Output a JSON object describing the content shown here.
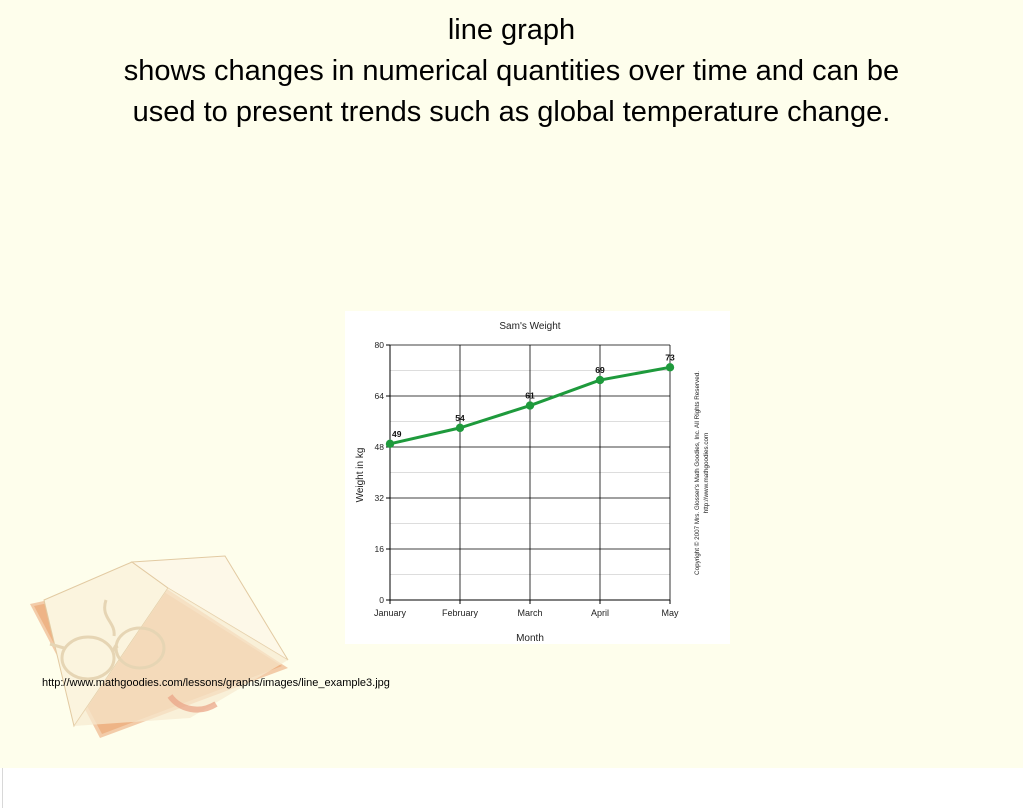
{
  "slide": {
    "heading_line1": "line graph",
    "heading_line2": "shows changes in numerical quantities over time and can be",
    "heading_line3": "used to present trends such as global temperature change.",
    "source_url": "http://www.mathgoodies.com/lessons/graphs/images/line_example3.jpg",
    "colors": {
      "background": "#fefeec",
      "line": "#1e9a3c",
      "book_cover": "#eeb486"
    }
  },
  "chart_data": {
    "type": "line",
    "title": "Sam's Weight",
    "xlabel": "Month",
    "ylabel": "Weight in kg",
    "categories": [
      "January",
      "February",
      "March",
      "April",
      "May"
    ],
    "series": [
      {
        "values": [
          49,
          54,
          61,
          69,
          73
        ]
      }
    ],
    "data_labels": [
      "49",
      "54",
      "61",
      "69",
      "73"
    ],
    "yticks": [
      "0",
      "16",
      "32",
      "48",
      "64",
      "80"
    ],
    "ytick_values": [
      0,
      16,
      32,
      48,
      64,
      80
    ],
    "ylim": [
      0,
      80
    ],
    "grid": true,
    "copyright_line1": "Copyright © 2007 Mrs. Glosser's Math Goodies, Inc. All Rights Reserved.",
    "copyright_line2": "http://www.mathgoodies.com"
  }
}
